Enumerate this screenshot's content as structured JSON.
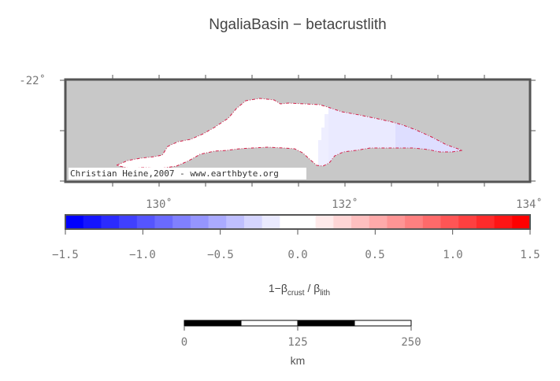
{
  "title": "NgaliaBasin − betacrustlith",
  "map": {
    "lat_tick_labels": [
      "-22˚"
    ],
    "lon_tick_labels": [
      "130˚",
      "132˚",
      "134˚"
    ],
    "credit": "Christian Heine,2007 - www.earthbyte.org",
    "background_color": "#c8c8c8",
    "basin_fill": "#ffffff",
    "outline_color": "#d4204a"
  },
  "colorbar": {
    "tick_labels": [
      "−1.5",
      "−1.0",
      "−0.5",
      "0.0",
      "0.5",
      "1.0",
      "1.5"
    ],
    "range": [
      -1.5,
      1.5
    ],
    "colors": [
      "#0000ff",
      "#1515ff",
      "#2b2bff",
      "#4040ff",
      "#5555ff",
      "#6a6aff",
      "#8080ff",
      "#9595ff",
      "#aaaaff",
      "#bfbfff",
      "#d5d5ff",
      "#eaeaff",
      "#ffffff",
      "#ffffff",
      "#ffeaea",
      "#ffd5d5",
      "#ffbfbf",
      "#ffaaaa",
      "#ff9595",
      "#ff8080",
      "#ff6a6a",
      "#ff5555",
      "#ff4040",
      "#ff2b2b",
      "#ff1515",
      "#ff0000"
    ],
    "label_main1": "1−β",
    "label_sub1": "crust",
    "label_main2": " / β",
    "label_sub2": "lith"
  },
  "scalebar": {
    "tick_labels": [
      "0",
      "125",
      "250"
    ],
    "unit": "km"
  }
}
